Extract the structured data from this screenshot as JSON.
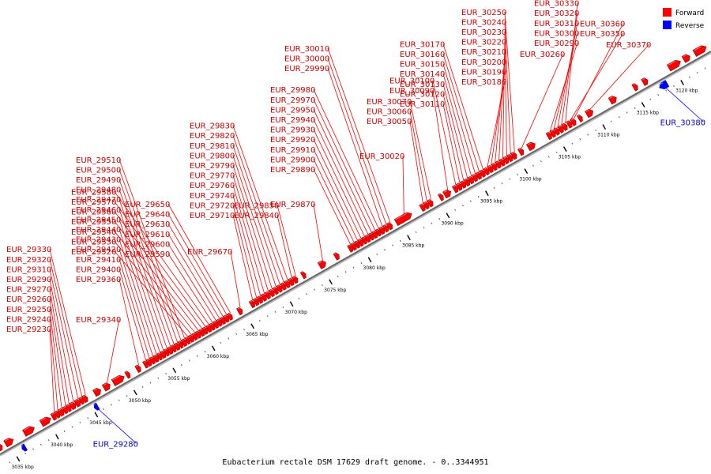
{
  "caption": "Eubacterium rectale DSM 17629 draft genome. - 0..3344951",
  "legend": [
    {
      "label": "Forward",
      "color": "#ff0000"
    },
    {
      "label": "Reverse",
      "color": "#0000ff"
    }
  ],
  "axis": {
    "min_kbp": 3033.5,
    "max_kbp": 3124.5,
    "ticks_kbp": [
      3035,
      3040,
      3045,
      3050,
      3055,
      3060,
      3065,
      3070,
      3075,
      3080,
      3085,
      3090,
      3095,
      3100,
      3105,
      3110,
      3115,
      3120
    ],
    "tick_suffix": " kbp"
  },
  "genes": [
    {
      "name": "EUR_29230",
      "strand": "+",
      "start": 3040.6,
      "end": 3041.1
    },
    {
      "name": "EUR_29240",
      "strand": "+",
      "start": 3041.1,
      "end": 3041.5
    },
    {
      "name": "EUR_29250",
      "strand": "+",
      "start": 3041.5,
      "end": 3042.1
    },
    {
      "name": "EUR_29260",
      "strand": "+",
      "start": 3042.1,
      "end": 3042.5
    },
    {
      "name": "EUR_29270",
      "strand": "+",
      "start": 3042.5,
      "end": 3043.0
    },
    {
      "name": "EUR_29280",
      "strand": "-",
      "start": 3045.2,
      "end": 3045.6
    },
    {
      "name": "EUR_29290",
      "strand": "+",
      "start": 3043.0,
      "end": 3043.6
    },
    {
      "name": "EUR_29310",
      "strand": "+",
      "start": 3043.6,
      "end": 3044.2
    },
    {
      "name": "EUR_29320",
      "strand": "+",
      "start": 3044.2,
      "end": 3044.6
    },
    {
      "name": "EUR_29330",
      "strand": "+",
      "start": 3044.6,
      "end": 3045.1
    },
    {
      "name": "EUR_29340",
      "strand": "+",
      "start": 3047.2,
      "end": 3048.0
    },
    {
      "name": "EUR_29360",
      "strand": "+",
      "start": 3051.4,
      "end": 3051.9
    },
    {
      "name": "EUR_29400",
      "strand": "+",
      "start": 3052.4,
      "end": 3052.8
    },
    {
      "name": "EUR_29410",
      "strand": "+",
      "start": 3052.8,
      "end": 3053.3
    },
    {
      "name": "EUR_29420",
      "strand": "+",
      "start": 3053.3,
      "end": 3053.7
    },
    {
      "name": "EUR_29430",
      "strand": "+",
      "start": 3053.7,
      "end": 3054.2
    },
    {
      "name": "EUR_29440",
      "strand": "+",
      "start": 3054.2,
      "end": 3054.6
    },
    {
      "name": "EUR_29450",
      "strand": "+",
      "start": 3054.6,
      "end": 3055.1
    },
    {
      "name": "EUR_29460",
      "strand": "+",
      "start": 3055.1,
      "end": 3055.5
    },
    {
      "name": "EUR_29470",
      "strand": "+",
      "start": 3055.5,
      "end": 3056.0
    },
    {
      "name": "EUR_29480",
      "strand": "+",
      "start": 3056.0,
      "end": 3056.4
    },
    {
      "name": "EUR_29490",
      "strand": "+",
      "start": 3056.4,
      "end": 3056.9
    },
    {
      "name": "EUR_29500",
      "strand": "+",
      "start": 3056.9,
      "end": 3057.3
    },
    {
      "name": "EUR_29510",
      "strand": "+",
      "start": 3057.3,
      "end": 3057.8
    },
    {
      "name": "EUR_29520",
      "strand": "+",
      "start": 3057.8,
      "end": 3058.2
    },
    {
      "name": "EUR_29530",
      "strand": "+",
      "start": 3058.2,
      "end": 3058.7
    },
    {
      "name": "EUR_29540",
      "strand": "+",
      "start": 3058.7,
      "end": 3059.1
    },
    {
      "name": "EUR_29550",
      "strand": "+",
      "start": 3059.1,
      "end": 3059.6
    },
    {
      "name": "EUR_29560",
      "strand": "+",
      "start": 3059.6,
      "end": 3060.0
    },
    {
      "name": "EUR_29570",
      "strand": "+",
      "start": 3060.0,
      "end": 3060.5
    },
    {
      "name": "EUR_29580",
      "strand": "+",
      "start": 3060.5,
      "end": 3060.9
    },
    {
      "name": "EUR_29590",
      "strand": "+",
      "start": 3060.9,
      "end": 3061.4
    },
    {
      "name": "EUR_29600",
      "strand": "+",
      "start": 3061.4,
      "end": 3061.8
    },
    {
      "name": "EUR_29610",
      "strand": "+",
      "start": 3061.8,
      "end": 3062.3
    },
    {
      "name": "EUR_29630",
      "strand": "+",
      "start": 3062.3,
      "end": 3062.7
    },
    {
      "name": "EUR_29640",
      "strand": "+",
      "start": 3062.7,
      "end": 3063.2
    },
    {
      "name": "EUR_29650",
      "strand": "+",
      "start": 3063.2,
      "end": 3063.6
    },
    {
      "name": "EUR_29670",
      "strand": "+",
      "start": 3064.4,
      "end": 3064.9
    },
    {
      "name": "EUR_29710",
      "strand": "+",
      "start": 3066.0,
      "end": 3066.5
    },
    {
      "name": "EUR_29720",
      "strand": "+",
      "start": 3066.5,
      "end": 3067.0
    },
    {
      "name": "EUR_29740",
      "strand": "+",
      "start": 3067.0,
      "end": 3067.5
    },
    {
      "name": "EUR_29760",
      "strand": "+",
      "start": 3067.5,
      "end": 3068.0
    },
    {
      "name": "EUR_29770",
      "strand": "+",
      "start": 3068.0,
      "end": 3068.5
    },
    {
      "name": "EUR_29790",
      "strand": "+",
      "start": 3068.5,
      "end": 3069.0
    },
    {
      "name": "EUR_29800",
      "strand": "+",
      "start": 3069.0,
      "end": 3069.5
    },
    {
      "name": "EUR_29810",
      "strand": "+",
      "start": 3069.5,
      "end": 3070.0
    },
    {
      "name": "EUR_29820",
      "strand": "+",
      "start": 3070.0,
      "end": 3070.5
    },
    {
      "name": "EUR_29830",
      "strand": "+",
      "start": 3070.5,
      "end": 3071.0
    },
    {
      "name": "EUR_29840",
      "strand": "+",
      "start": 3071.0,
      "end": 3071.5
    },
    {
      "name": "EUR_29850",
      "strand": "+",
      "start": 3071.5,
      "end": 3072.0
    },
    {
      "name": "EUR_29870",
      "strand": "+",
      "start": 3074.8,
      "end": 3075.6
    },
    {
      "name": "EUR_29890",
      "strand": "+",
      "start": 3078.6,
      "end": 3079.0
    },
    {
      "name": "EUR_29900",
      "strand": "+",
      "start": 3079.0,
      "end": 3079.5
    },
    {
      "name": "EUR_29910",
      "strand": "+",
      "start": 3079.5,
      "end": 3079.9
    },
    {
      "name": "EUR_29920",
      "strand": "+",
      "start": 3079.9,
      "end": 3080.4
    },
    {
      "name": "EUR_29930",
      "strand": "+",
      "start": 3080.4,
      "end": 3080.8
    },
    {
      "name": "EUR_29940",
      "strand": "+",
      "start": 3080.8,
      "end": 3081.3
    },
    {
      "name": "EUR_29950",
      "strand": "+",
      "start": 3081.3,
      "end": 3081.7
    },
    {
      "name": "EUR_29970",
      "strand": "+",
      "start": 3081.7,
      "end": 3082.2
    },
    {
      "name": "EUR_29980",
      "strand": "+",
      "start": 3082.2,
      "end": 3082.6
    },
    {
      "name": "EUR_29990",
      "strand": "+",
      "start": 3082.6,
      "end": 3083.1
    },
    {
      "name": "EUR_30000",
      "strand": "+",
      "start": 3083.1,
      "end": 3083.6
    },
    {
      "name": "EUR_30010",
      "strand": "+",
      "start": 3083.6,
      "end": 3084.1
    },
    {
      "name": "EUR_30020",
      "strand": "+",
      "start": 3084.6,
      "end": 3086.6
    },
    {
      "name": "EUR_30050",
      "strand": "+",
      "start": 3087.8,
      "end": 3088.3
    },
    {
      "name": "EUR_30060",
      "strand": "+",
      "start": 3088.3,
      "end": 3088.8
    },
    {
      "name": "EUR_30070",
      "strand": "+",
      "start": 3088.8,
      "end": 3089.3
    },
    {
      "name": "EUR_30090",
      "strand": "+",
      "start": 3090.8,
      "end": 3091.6
    },
    {
      "name": "EUR_30100",
      "strand": "+",
      "start": 3092.0,
      "end": 3092.5
    },
    {
      "name": "EUR_30110",
      "strand": "+",
      "start": 3092.5,
      "end": 3093.0
    },
    {
      "name": "EUR_30120",
      "strand": "+",
      "start": 3093.0,
      "end": 3093.5
    },
    {
      "name": "EUR_30130",
      "strand": "+",
      "start": 3093.5,
      "end": 3094.0
    },
    {
      "name": "EUR_30140",
      "strand": "+",
      "start": 3094.0,
      "end": 3094.5
    },
    {
      "name": "EUR_30150",
      "strand": "+",
      "start": 3094.5,
      "end": 3095.0
    },
    {
      "name": "EUR_30160",
      "strand": "+",
      "start": 3095.0,
      "end": 3095.5
    },
    {
      "name": "EUR_30170",
      "strand": "+",
      "start": 3095.5,
      "end": 3096.0
    },
    {
      "name": "EUR_30180",
      "strand": "+",
      "start": 3096.0,
      "end": 3096.5
    },
    {
      "name": "EUR_30190",
      "strand": "+",
      "start": 3096.5,
      "end": 3097.0
    },
    {
      "name": "EUR_30200",
      "strand": "+",
      "start": 3097.0,
      "end": 3097.5
    },
    {
      "name": "EUR_30210",
      "strand": "+",
      "start": 3097.5,
      "end": 3098.0
    },
    {
      "name": "EUR_30220",
      "strand": "+",
      "start": 3098.0,
      "end": 3098.5
    },
    {
      "name": "EUR_30230",
      "strand": "+",
      "start": 3098.5,
      "end": 3099.0
    },
    {
      "name": "EUR_30240",
      "strand": "+",
      "start": 3099.0,
      "end": 3099.5
    },
    {
      "name": "EUR_30250",
      "strand": "+",
      "start": 3099.5,
      "end": 3100.0
    },
    {
      "name": "EUR_30260",
      "strand": "+",
      "start": 3100.4,
      "end": 3100.9
    },
    {
      "name": "EUR_30290",
      "strand": "+",
      "start": 3104.0,
      "end": 3104.5
    },
    {
      "name": "EUR_30300",
      "strand": "+",
      "start": 3104.5,
      "end": 3105.0
    },
    {
      "name": "EUR_30310",
      "strand": "+",
      "start": 3105.0,
      "end": 3105.5
    },
    {
      "name": "EUR_30320",
      "strand": "+",
      "start": 3105.5,
      "end": 3106.0
    },
    {
      "name": "EUR_30330",
      "strand": "+",
      "start": 3106.0,
      "end": 3106.5
    },
    {
      "name": "EUR_30350",
      "strand": "+",
      "start": 3106.6,
      "end": 3107.1
    },
    {
      "name": "EUR_30360",
      "strand": "+",
      "start": 3107.1,
      "end": 3107.6
    },
    {
      "name": "EUR_30370",
      "strand": "+",
      "start": 3109.0,
      "end": 3109.8
    },
    {
      "name": "EUR_30380",
      "strand": "-",
      "start": 3117.5,
      "end": 3118.5
    }
  ],
  "unlabeled_genes": [
    {
      "strand": "+",
      "start": 3033.6,
      "end": 3034.2
    },
    {
      "strand": "+",
      "start": 3034.6,
      "end": 3035.6
    },
    {
      "strand": "-",
      "start": 3036.0,
      "end": 3036.3
    },
    {
      "strand": "+",
      "start": 3037.0,
      "end": 3038.3
    },
    {
      "strand": "+",
      "start": 3039.2,
      "end": 3040.4
    },
    {
      "strand": "+",
      "start": 3046.0,
      "end": 3046.8
    },
    {
      "strand": "+",
      "start": 3048.4,
      "end": 3049.8
    },
    {
      "strand": "+",
      "start": 3050.1,
      "end": 3050.5
    },
    {
      "strand": "+",
      "start": 3072.6,
      "end": 3073.0
    },
    {
      "strand": "+",
      "start": 3076.8,
      "end": 3077.3
    },
    {
      "strand": "+",
      "start": 3090.2,
      "end": 3090.6
    },
    {
      "strand": "+",
      "start": 3101.5,
      "end": 3102.4
    },
    {
      "strand": "+",
      "start": 3108.0,
      "end": 3108.4
    },
    {
      "strand": "+",
      "start": 3112.0,
      "end": 3112.8
    },
    {
      "strand": "+",
      "start": 3115.0,
      "end": 3115.5
    },
    {
      "strand": "+",
      "start": 3116.2,
      "end": 3116.8
    },
    {
      "strand": "+",
      "start": 3119.5,
      "end": 3121.0
    },
    {
      "strand": "+",
      "start": 3121.4,
      "end": 3122.2
    },
    {
      "strand": "+",
      "start": 3122.8,
      "end": 3124.3
    }
  ]
}
